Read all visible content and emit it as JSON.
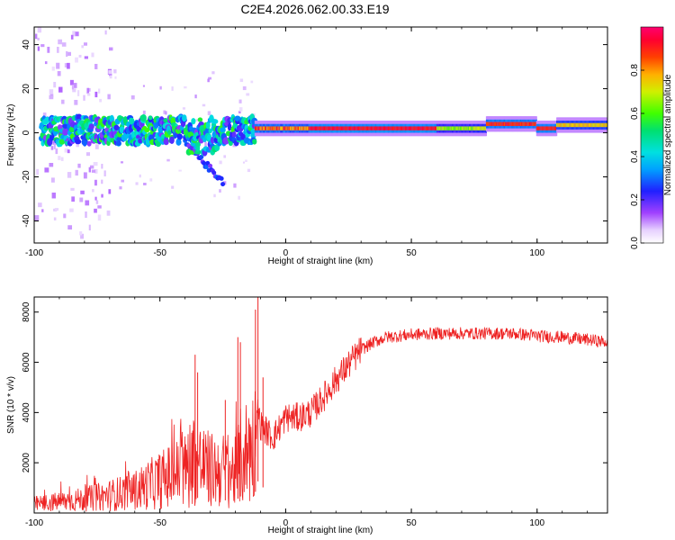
{
  "figure_title": "C2E4.2026.062.00.33.E19",
  "colors": {
    "snr_line": "#ee2222",
    "spec_low": "#ffffff",
    "spec_high": "#ff0060"
  },
  "chart_data": [
    {
      "type": "heatmap",
      "name": "spectrogram",
      "xlabel": "Height of straight line (km)",
      "ylabel": "Frequency (Hz)",
      "xlim": [
        -100,
        128
      ],
      "ylim": [
        -50,
        48
      ],
      "xticks": [
        -100,
        -50,
        0,
        50,
        100
      ],
      "yticks": [
        -40,
        -20,
        0,
        20,
        40
      ],
      "colorbar": {
        "label": "Normalized spectral amplitude",
        "range": [
          0,
          1
        ],
        "ticks": [
          "0.0",
          "0.2",
          "0.4",
          "0.6",
          "0.8"
        ]
      },
      "features": [
        {
          "x_range": [
            -97,
            -12
          ],
          "center_freq": 1,
          "description": "noisy band, amplitude 0.2-0.6"
        },
        {
          "x_range": [
            -12,
            128
          ],
          "center_freq": 2,
          "description": "coherent carrier, amplitude rising to ~0.95"
        },
        {
          "x_range": [
            -40,
            -25
          ],
          "freq_range": [
            -5,
            -22
          ],
          "description": "descending weak trace"
        }
      ]
    },
    {
      "type": "line",
      "name": "snr",
      "xlabel": "Height of straight line (km)",
      "ylabel": "SNR (10 * v/v)",
      "xlim": [
        -100,
        128
      ],
      "ylim": [
        0,
        8600
      ],
      "xticks": [
        -100,
        -50,
        0,
        50,
        100
      ],
      "yticks": [
        2000,
        4000,
        6000,
        8000
      ],
      "series": [
        {
          "name": "SNR",
          "x": [
            -100,
            -90,
            -80,
            -70,
            -60,
            -50,
            -45,
            -40,
            -37,
            -35,
            -30,
            -25,
            -20,
            -18,
            -15,
            -12,
            -11,
            -10,
            -5,
            0,
            5,
            10,
            15,
            20,
            25,
            30,
            35,
            40,
            50,
            60,
            70,
            80,
            90,
            100,
            110,
            120,
            128
          ],
          "y": [
            350,
            450,
            550,
            700,
            900,
            1300,
            1500,
            1700,
            2200,
            2000,
            1700,
            1700,
            1600,
            2200,
            2500,
            2800,
            4200,
            3500,
            3000,
            3800,
            3800,
            4000,
            4600,
            5300,
            5900,
            6500,
            6800,
            7000,
            7100,
            7150,
            7150,
            7150,
            7150,
            7050,
            7000,
            6900,
            6800
          ]
        }
      ],
      "spikes": [
        {
          "x": -36,
          "y": 6300
        },
        {
          "x": -35,
          "y": 5600
        },
        {
          "x": -24,
          "y": 4500
        },
        {
          "x": -19,
          "y": 7000
        },
        {
          "x": -18,
          "y": 6800
        },
        {
          "x": -12,
          "y": 8100
        },
        {
          "x": -11,
          "y": 8600
        },
        {
          "x": -9,
          "y": 5400
        }
      ]
    }
  ]
}
